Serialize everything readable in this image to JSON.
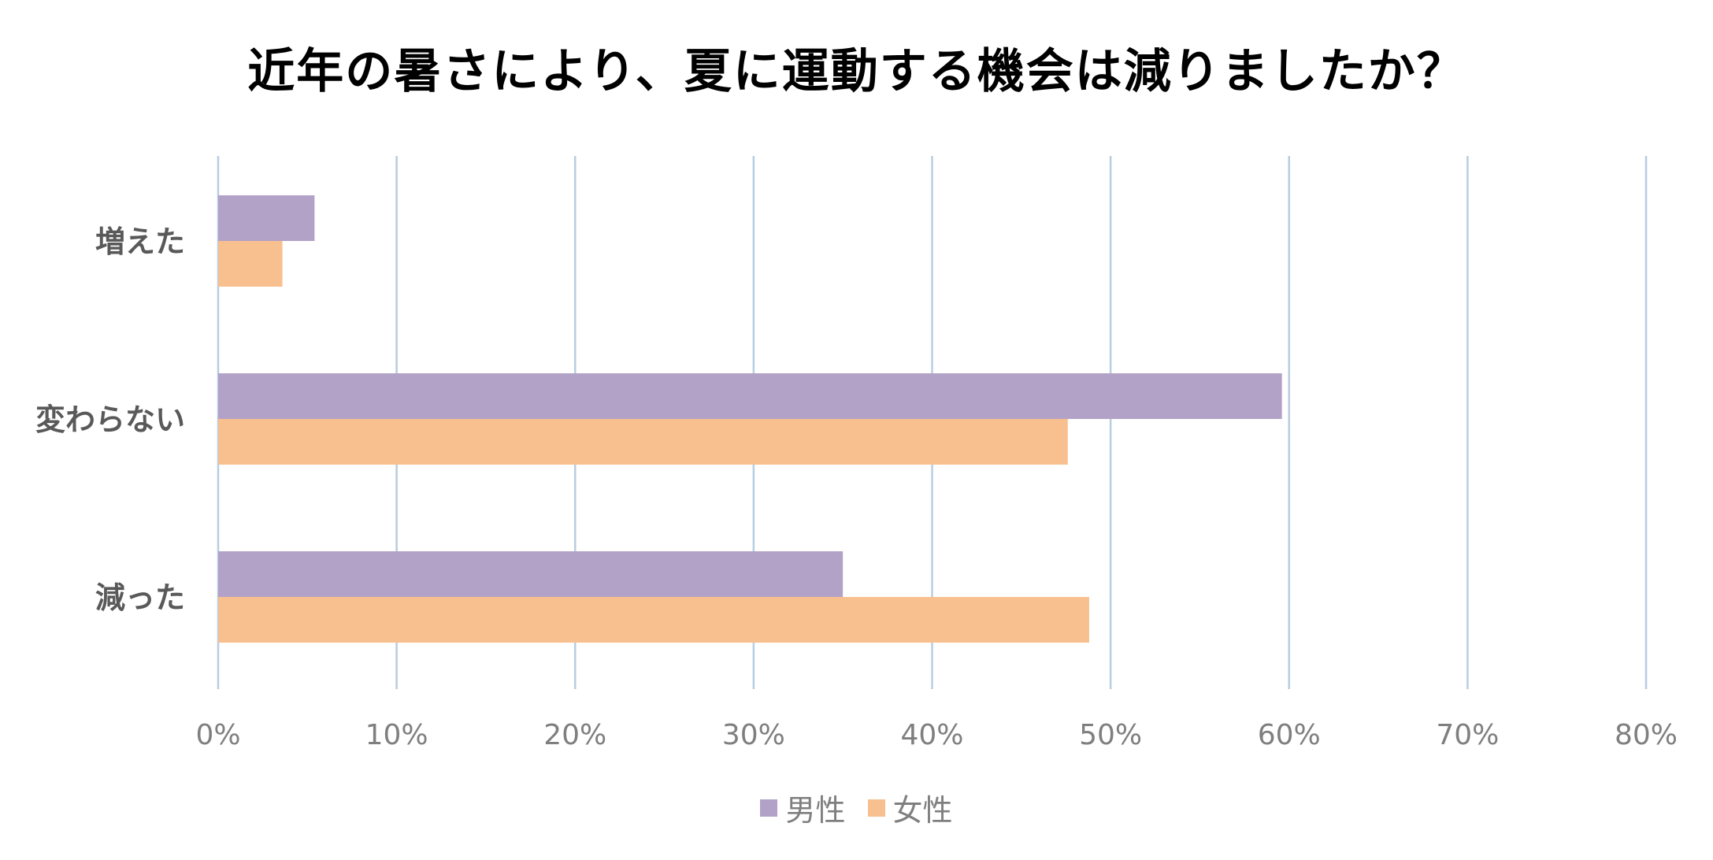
{
  "chart_data": {
    "type": "bar",
    "orientation": "horizontal",
    "title": "近年の暑さにより、夏に運動する機会は減りましたか？",
    "categories": [
      "増えた",
      "変わらない",
      "減った"
    ],
    "series": [
      {
        "name": "男性",
        "color": "#b3a2c7",
        "values": [
          5.4,
          59.6,
          35.0
        ]
      },
      {
        "name": "女性",
        "color": "#f9c08f",
        "values": [
          3.6,
          47.6,
          48.8
        ]
      }
    ],
    "xlim": [
      0,
      80
    ],
    "xticks": [
      0,
      10,
      20,
      30,
      40,
      50,
      60,
      70,
      80
    ],
    "tick_labels": [
      "0%",
      "10%",
      "20%",
      "30%",
      "40%",
      "50%",
      "60%",
      "70%",
      "80%"
    ],
    "unit": "%",
    "grid": "vertical",
    "gridline_color": "#b8cde0",
    "legend_position": "bottom",
    "xlabel": "",
    "ylabel": ""
  }
}
